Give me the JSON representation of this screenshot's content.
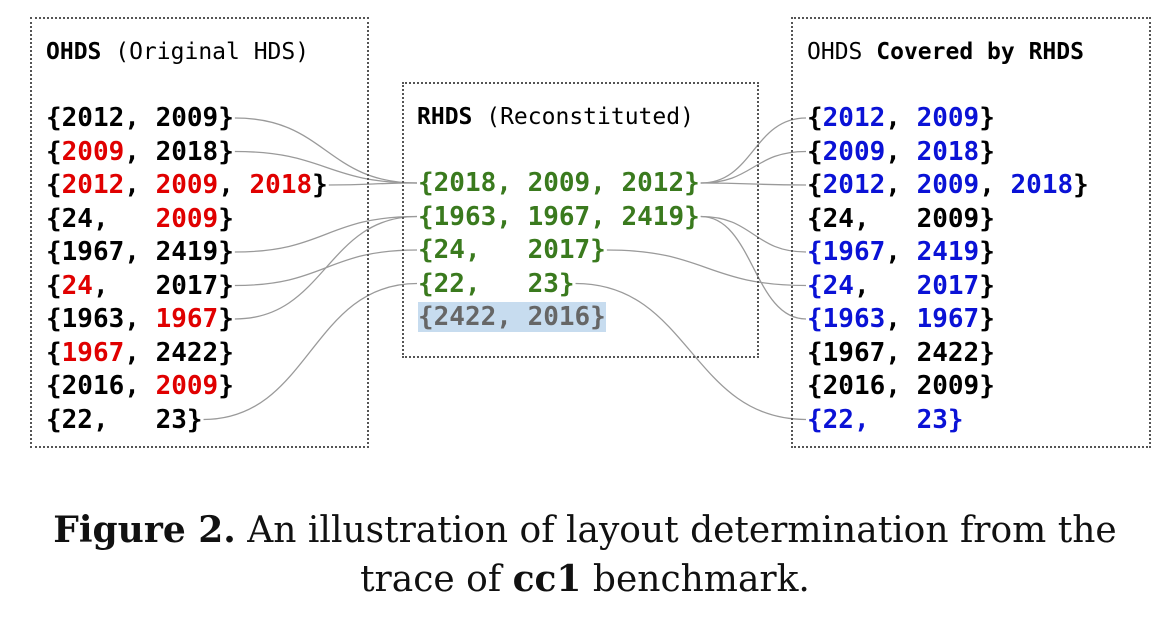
{
  "colors": {
    "red": "#e00000",
    "black": "#000000",
    "green": "#3a7a1e",
    "blue": "#0a12d6",
    "gray": "#666666",
    "highlight": "#c7dcef",
    "connector": "#9a9a9a"
  },
  "left_box": {
    "title_bold": "OHDS",
    "title_rest": " (Original HDS)",
    "rows": [
      {
        "tokens": [
          {
            "t": "{",
            "c": "black"
          },
          {
            "t": "2012",
            "c": "black"
          },
          {
            "t": ", ",
            "c": "black"
          },
          {
            "t": "2009",
            "c": "black"
          },
          {
            "t": "}",
            "c": "black"
          }
        ]
      },
      {
        "tokens": [
          {
            "t": "{",
            "c": "black"
          },
          {
            "t": "2009",
            "c": "red"
          },
          {
            "t": ", ",
            "c": "black"
          },
          {
            "t": "2018",
            "c": "black"
          },
          {
            "t": "}",
            "c": "black"
          }
        ]
      },
      {
        "tokens": [
          {
            "t": "{",
            "c": "black"
          },
          {
            "t": "2012",
            "c": "red"
          },
          {
            "t": ", ",
            "c": "black"
          },
          {
            "t": "2009",
            "c": "red"
          },
          {
            "t": ", ",
            "c": "black"
          },
          {
            "t": "2018",
            "c": "red"
          },
          {
            "t": "}",
            "c": "black"
          }
        ]
      },
      {
        "tokens": [
          {
            "t": "{",
            "c": "black"
          },
          {
            "t": "24,   ",
            "c": "black"
          },
          {
            "t": "2009",
            "c": "red"
          },
          {
            "t": "}",
            "c": "black"
          }
        ]
      },
      {
        "tokens": [
          {
            "t": "{",
            "c": "black"
          },
          {
            "t": "1967",
            "c": "black"
          },
          {
            "t": ", ",
            "c": "black"
          },
          {
            "t": "2419",
            "c": "black"
          },
          {
            "t": "}",
            "c": "black"
          }
        ]
      },
      {
        "tokens": [
          {
            "t": "{",
            "c": "black"
          },
          {
            "t": "24",
            "c": "red"
          },
          {
            "t": ",   ",
            "c": "black"
          },
          {
            "t": "2017",
            "c": "black"
          },
          {
            "t": "}",
            "c": "black"
          }
        ]
      },
      {
        "tokens": [
          {
            "t": "{",
            "c": "black"
          },
          {
            "t": "1963",
            "c": "black"
          },
          {
            "t": ", ",
            "c": "black"
          },
          {
            "t": "1967",
            "c": "red"
          },
          {
            "t": "}",
            "c": "black"
          }
        ]
      },
      {
        "tokens": [
          {
            "t": "{",
            "c": "black"
          },
          {
            "t": "1967",
            "c": "red"
          },
          {
            "t": ", ",
            "c": "black"
          },
          {
            "t": "2422",
            "c": "black"
          },
          {
            "t": "}",
            "c": "black"
          }
        ]
      },
      {
        "tokens": [
          {
            "t": "{",
            "c": "black"
          },
          {
            "t": "2016",
            "c": "black"
          },
          {
            "t": ", ",
            "c": "black"
          },
          {
            "t": "2009",
            "c": "red"
          },
          {
            "t": "}",
            "c": "black"
          }
        ]
      },
      {
        "tokens": [
          {
            "t": "{",
            "c": "black"
          },
          {
            "t": "22,   ",
            "c": "black"
          },
          {
            "t": "23",
            "c": "black"
          },
          {
            "t": "}",
            "c": "black"
          }
        ]
      }
    ]
  },
  "middle_box": {
    "title_bold": "RHDS",
    "title_rest": " (Reconstituted)",
    "rows": [
      {
        "tokens": [
          {
            "t": "{2018, 2009, 2012}",
            "c": "green"
          }
        ]
      },
      {
        "tokens": [
          {
            "t": "{1963, 1967, 2419}",
            "c": "green"
          }
        ]
      },
      {
        "tokens": [
          {
            "t": "{24,   2017}",
            "c": "green"
          }
        ]
      },
      {
        "tokens": [
          {
            "t": "{22,   23}",
            "c": "green"
          }
        ]
      },
      {
        "tokens": [
          {
            "t": "{2422, 2016}",
            "c": "gray"
          }
        ],
        "highlight": true
      }
    ]
  },
  "right_box": {
    "title_a": "OHDS ",
    "title_bold": "Covered by RHDS",
    "rows": [
      {
        "tokens": [
          {
            "t": "{",
            "c": "black"
          },
          {
            "t": "2012",
            "c": "blue"
          },
          {
            "t": ", ",
            "c": "black"
          },
          {
            "t": "2009",
            "c": "blue"
          },
          {
            "t": "}",
            "c": "black"
          }
        ]
      },
      {
        "tokens": [
          {
            "t": "{",
            "c": "black"
          },
          {
            "t": "2009",
            "c": "blue"
          },
          {
            "t": ", ",
            "c": "black"
          },
          {
            "t": "2018",
            "c": "blue"
          },
          {
            "t": "}",
            "c": "black"
          }
        ]
      },
      {
        "tokens": [
          {
            "t": "{",
            "c": "black"
          },
          {
            "t": "2012",
            "c": "blue"
          },
          {
            "t": ", ",
            "c": "black"
          },
          {
            "t": "2009",
            "c": "blue"
          },
          {
            "t": ", ",
            "c": "black"
          },
          {
            "t": "2018",
            "c": "blue"
          },
          {
            "t": "}",
            "c": "black"
          }
        ]
      },
      {
        "tokens": [
          {
            "t": "{",
            "c": "black"
          },
          {
            "t": "24,   ",
            "c": "black"
          },
          {
            "t": "2009",
            "c": "black"
          },
          {
            "t": "}",
            "c": "black"
          }
        ]
      },
      {
        "tokens": [
          {
            "t": "{",
            "c": "blue"
          },
          {
            "t": "1967",
            "c": "blue"
          },
          {
            "t": ", ",
            "c": "black"
          },
          {
            "t": "2419",
            "c": "blue"
          },
          {
            "t": "}",
            "c": "black"
          }
        ]
      },
      {
        "tokens": [
          {
            "t": "{",
            "c": "blue"
          },
          {
            "t": "24",
            "c": "blue"
          },
          {
            "t": ",   ",
            "c": "black"
          },
          {
            "t": "2017",
            "c": "blue"
          },
          {
            "t": "}",
            "c": "black"
          }
        ]
      },
      {
        "tokens": [
          {
            "t": "{",
            "c": "blue"
          },
          {
            "t": "1963",
            "c": "blue"
          },
          {
            "t": ", ",
            "c": "black"
          },
          {
            "t": "1967",
            "c": "blue"
          },
          {
            "t": "}",
            "c": "black"
          }
        ]
      },
      {
        "tokens": [
          {
            "t": "{",
            "c": "black"
          },
          {
            "t": "1967",
            "c": "black"
          },
          {
            "t": ", ",
            "c": "black"
          },
          {
            "t": "2422",
            "c": "black"
          },
          {
            "t": "}",
            "c": "black"
          }
        ]
      },
      {
        "tokens": [
          {
            "t": "{",
            "c": "black"
          },
          {
            "t": "2016",
            "c": "black"
          },
          {
            "t": ", ",
            "c": "black"
          },
          {
            "t": "2009",
            "c": "black"
          },
          {
            "t": "}",
            "c": "black"
          }
        ]
      },
      {
        "tokens": [
          {
            "t": "{22,   23}",
            "c": "blue"
          }
        ]
      }
    ]
  },
  "caption": {
    "label": "Figure 2.",
    "text1": " An illustration of layout determination from the",
    "text2a": "trace of ",
    "text2b": "cc1",
    "text2c": " benchmark."
  }
}
